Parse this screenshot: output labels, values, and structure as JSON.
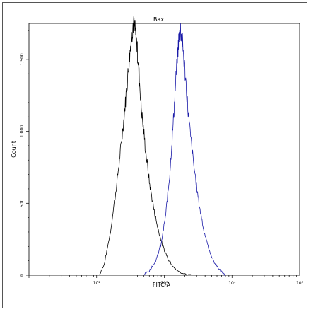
{
  "chart_data": {
    "type": "line",
    "title": "Bax",
    "xlabel": "FITC-A",
    "ylabel": "Count",
    "x_scale": "log",
    "xlim": [
      10,
      100000
    ],
    "ylim": [
      0,
      1750
    ],
    "x_ticks": [
      {
        "value": 100,
        "label": "10²"
      },
      {
        "value": 1000,
        "label": "10³"
      },
      {
        "value": 10000,
        "label": "10⁴"
      },
      {
        "value": 100000,
        "label": "10⁵"
      }
    ],
    "y_ticks": [
      {
        "value": 0,
        "label": "0"
      },
      {
        "value": 500,
        "label": "500"
      },
      {
        "value": 1000,
        "label": "1,000"
      },
      {
        "value": 1500,
        "label": "1,500"
      }
    ],
    "series": [
      {
        "color": "#000000",
        "x": [
          110,
          130,
          160,
          200,
          230,
          260,
          290,
          320,
          345,
          365,
          390,
          420,
          460,
          520,
          600,
          700,
          800,
          950,
          1150,
          1400,
          1700,
          2100,
          2600
        ],
        "y": [
          0,
          80,
          300,
          650,
          900,
          1150,
          1400,
          1620,
          1740,
          1720,
          1620,
          1420,
          1150,
          900,
          650,
          460,
          330,
          200,
          110,
          50,
          20,
          5,
          0
        ]
      },
      {
        "color": "#1a1aa8",
        "x": [
          480,
          600,
          750,
          900,
          1050,
          1200,
          1350,
          1500,
          1620,
          1720,
          1850,
          2050,
          2300,
          2700,
          3200,
          3800,
          4600,
          5600,
          6800,
          8000
        ],
        "y": [
          0,
          30,
          100,
          220,
          420,
          700,
          1050,
          1400,
          1620,
          1720,
          1620,
          1380,
          1080,
          780,
          520,
          320,
          170,
          80,
          30,
          0
        ]
      }
    ]
  }
}
